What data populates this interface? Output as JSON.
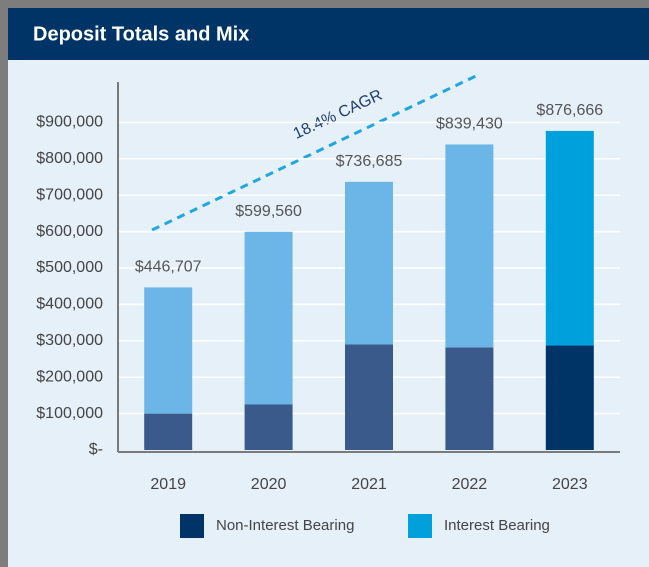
{
  "chart_data": {
    "type": "stacked-bar",
    "title": "Deposit Totals and Mix",
    "annotation": "18.4% CAGR",
    "categories": [
      "2019",
      "2020",
      "2021",
      "2022",
      "2023"
    ],
    "series": [
      {
        "name": "Non-Interest Bearing",
        "color": "#003366",
        "colors": [
          "#3a5a8c",
          "#3a5a8c",
          "#3a5a8c",
          "#3a5a8c",
          "#003366"
        ],
        "values": [
          100000,
          125000,
          290000,
          282000,
          287000
        ]
      },
      {
        "name": "Interest Bearing",
        "color": "#00a0dc",
        "colors": [
          "#6bb6e6",
          "#6bb6e6",
          "#6bb6e6",
          "#6bb6e6",
          "#00a0dc"
        ],
        "values": [
          346707,
          474560,
          446685,
          557430,
          589666
        ]
      }
    ],
    "totals": [
      446707,
      599560,
      736685,
      839430,
      876666
    ],
    "total_labels": [
      "$446,707",
      "$599,560",
      "$736,685",
      "$839,430",
      "$876,666"
    ],
    "ylim": [
      0,
      1000000
    ],
    "yticks": [
      {
        "value": 0,
        "label": "$-"
      },
      {
        "value": 100000,
        "label": "$100,000"
      },
      {
        "value": 200000,
        "label": "$200,000"
      },
      {
        "value": 300000,
        "label": "$300,000"
      },
      {
        "value": 400000,
        "label": "$400,000"
      },
      {
        "value": 500000,
        "label": "$500,000"
      },
      {
        "value": 600000,
        "label": "$600,000"
      },
      {
        "value": 700000,
        "label": "$700,000"
      },
      {
        "value": 800000,
        "label": "$800,000"
      },
      {
        "value": 900000,
        "label": "$900,000"
      }
    ],
    "grid": true
  }
}
